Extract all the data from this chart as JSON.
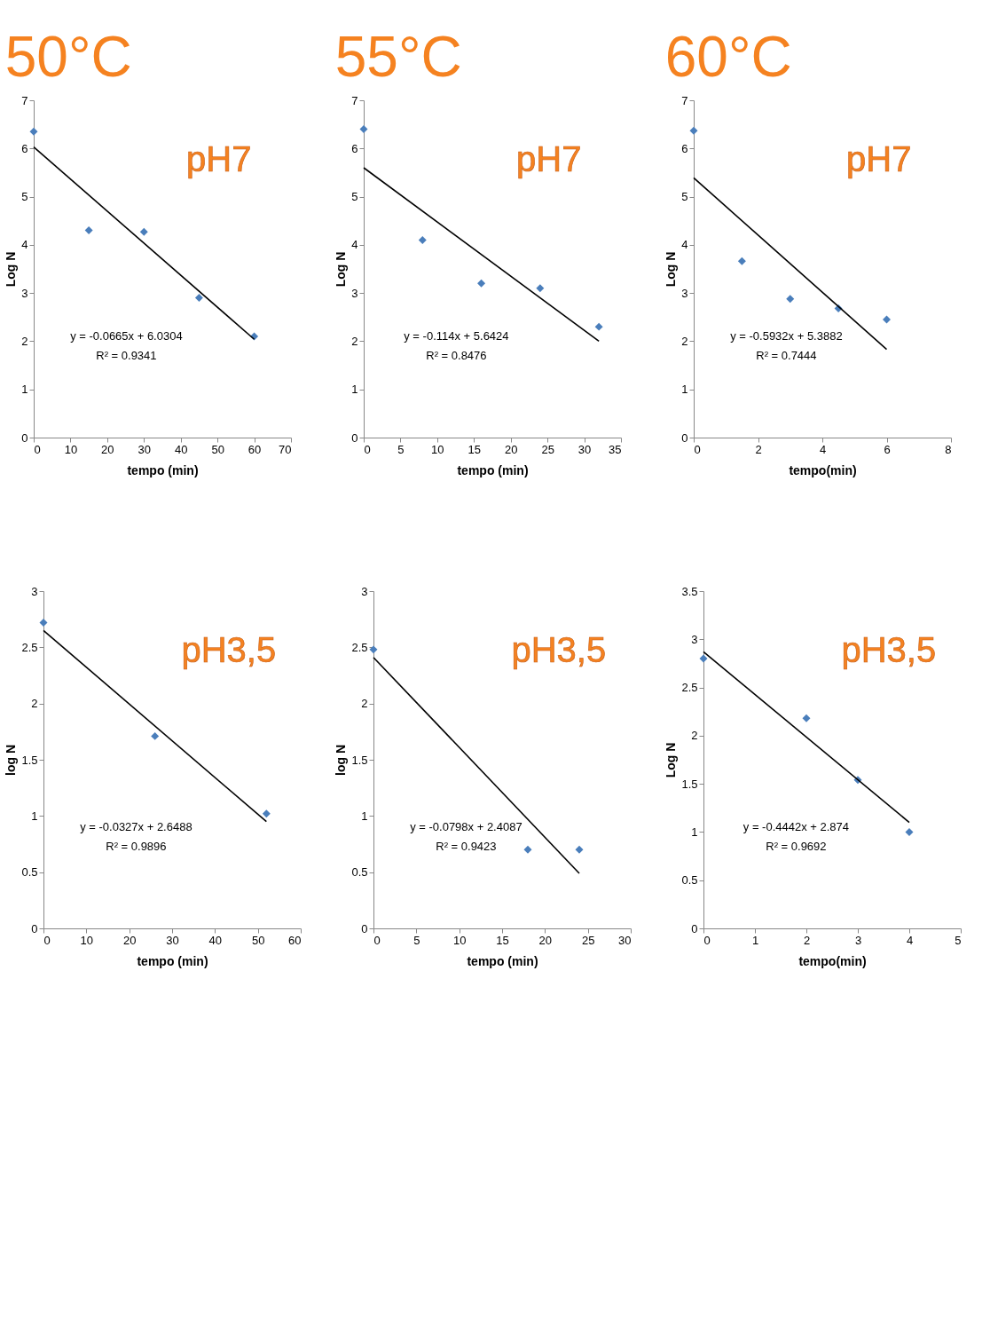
{
  "chart_data": [
    {
      "type": "scatter",
      "title": "50°C",
      "subtitle": "pH7",
      "xlabel": "tempo (min)",
      "ylabel": "Log N",
      "xlim": [
        0,
        70
      ],
      "xticks": [
        0,
        10,
        20,
        30,
        40,
        50,
        60,
        70
      ],
      "ylim": [
        0,
        7
      ],
      "yticks": [
        0,
        1,
        2,
        3,
        4,
        5,
        6,
        7
      ],
      "annotations": [
        "y = -0.0665x + 6.0304",
        "R² = 0.9341"
      ],
      "series": [
        {
          "color": "#4a7ebb",
          "marker": "diamond",
          "x": [
            0,
            15,
            30,
            45,
            60
          ],
          "values": [
            6.35,
            4.3,
            4.27,
            2.9,
            2.1
          ]
        },
        {
          "type": "line",
          "marker": "none",
          "color": "#000000",
          "x": [
            0,
            60
          ],
          "values": [
            6.03,
            2.04
          ]
        }
      ]
    },
    {
      "type": "scatter",
      "title": "55°C",
      "subtitle": "pH7",
      "xlabel": "tempo (min)",
      "ylabel": "Log N",
      "xlim": [
        0,
        35
      ],
      "xticks": [
        0,
        5,
        10,
        15,
        20,
        25,
        30,
        35
      ],
      "ylim": [
        0,
        7
      ],
      "yticks": [
        0,
        1,
        2,
        3,
        4,
        5,
        6,
        7
      ],
      "annotations": [
        "y = -0.114x + 5.6424",
        "R² = 0.8476"
      ],
      "series": [
        {
          "color": "#4a7ebb",
          "marker": "diamond",
          "x": [
            0,
            8,
            16,
            24,
            32
          ],
          "values": [
            6.4,
            4.1,
            3.2,
            3.1,
            2.3
          ]
        },
        {
          "type": "line",
          "marker": "none",
          "color": "#000000",
          "x": [
            0,
            32
          ],
          "values": [
            5.6,
            2.0
          ]
        }
      ]
    },
    {
      "type": "scatter",
      "title": "60°C",
      "subtitle": "pH7",
      "xlabel": "tempo(min)",
      "ylabel": "Log N",
      "xlim": [
        0,
        8
      ],
      "xticks": [
        0,
        2,
        4,
        6,
        8
      ],
      "ylim": [
        0,
        7
      ],
      "yticks": [
        0,
        1,
        2,
        3,
        4,
        5,
        6,
        7
      ],
      "annotations": [
        "y = -0.5932x + 5.3882",
        "R² = 0.7444"
      ],
      "series": [
        {
          "color": "#4a7ebb",
          "marker": "diamond",
          "x": [
            0,
            1.5,
            3,
            4.5,
            6
          ],
          "values": [
            6.37,
            3.66,
            2.88,
            2.68,
            2.45
          ]
        },
        {
          "type": "line",
          "marker": "none",
          "color": "#000000",
          "x": [
            0,
            6
          ],
          "values": [
            5.39,
            1.83
          ]
        }
      ]
    },
    {
      "type": "scatter",
      "subtitle": "pH3,5",
      "xlabel": "tempo (min)",
      "ylabel": "log N",
      "xlim": [
        0,
        60
      ],
      "xticks": [
        0,
        10,
        20,
        30,
        40,
        50,
        60
      ],
      "ylim": [
        0,
        3
      ],
      "yticks": [
        0,
        0.5,
        1,
        1.5,
        2,
        2.5,
        3
      ],
      "annotations": [
        "y = -0.0327x + 2.6488",
        "R² = 0.9896"
      ],
      "series": [
        {
          "color": "#4a7ebb",
          "marker": "diamond",
          "x": [
            0,
            26,
            52
          ],
          "values": [
            2.72,
            1.71,
            1.02
          ]
        },
        {
          "type": "line",
          "marker": "none",
          "color": "#000000",
          "x": [
            0,
            52
          ],
          "values": [
            2.65,
            0.95
          ]
        }
      ]
    },
    {
      "type": "scatter",
      "subtitle": "pH3,5",
      "xlabel": "tempo (min)",
      "ylabel": "log N",
      "xlim": [
        0,
        30
      ],
      "xticks": [
        0,
        5,
        10,
        15,
        20,
        25,
        30
      ],
      "ylim": [
        0,
        3
      ],
      "yticks": [
        0,
        0.5,
        1,
        1.5,
        2,
        2.5,
        3
      ],
      "annotations": [
        "y = -0.0798x + 2.4087",
        "R² = 0.9423"
      ],
      "series": [
        {
          "color": "#4a7ebb",
          "marker": "diamond",
          "x": [
            0,
            18,
            24
          ],
          "values": [
            2.48,
            0.7,
            0.7
          ]
        },
        {
          "type": "line",
          "marker": "none",
          "color": "#000000",
          "x": [
            0,
            24
          ],
          "values": [
            2.41,
            0.49
          ]
        }
      ]
    },
    {
      "type": "scatter",
      "subtitle": "pH3,5",
      "xlabel": "tempo(min)",
      "ylabel": "Log N",
      "xlim": [
        0,
        5
      ],
      "xticks": [
        0,
        1,
        2,
        3,
        4,
        5
      ],
      "ylim": [
        0,
        3.5
      ],
      "yticks": [
        0,
        0.5,
        1,
        1.5,
        2,
        2.5,
        3,
        3.5
      ],
      "annotations": [
        "y = -0.4442x + 2.874",
        "R² = 0.9692"
      ],
      "series": [
        {
          "color": "#4a7ebb",
          "marker": "diamond",
          "x": [
            0,
            2,
            3,
            4
          ],
          "values": [
            2.8,
            2.18,
            1.54,
            1.0
          ]
        },
        {
          "type": "line",
          "marker": "none",
          "color": "#000000",
          "x": [
            0,
            4
          ],
          "values": [
            2.87,
            1.1
          ]
        }
      ]
    }
  ]
}
